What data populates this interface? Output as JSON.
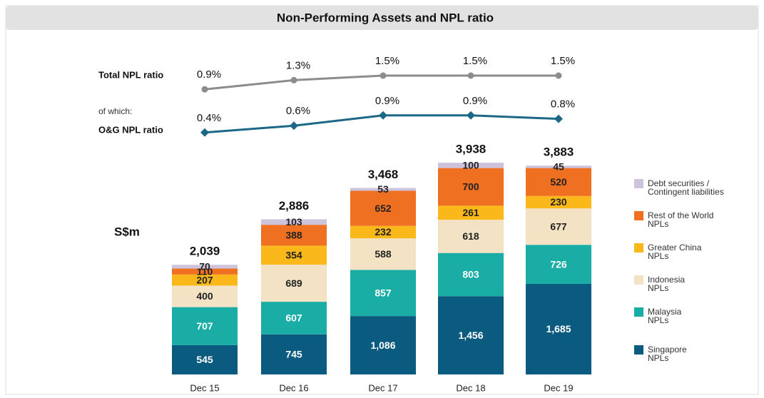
{
  "chart_data": {
    "type": "bar",
    "stacked": true,
    "title": "Non-Performing Assets and NPL ratio",
    "unit_label": "S$m",
    "categories": [
      "Dec 15",
      "Dec 16",
      "Dec 17",
      "Dec 18",
      "Dec 19"
    ],
    "series": [
      {
        "name": "Singapore\nNPLs",
        "color": "#0b5a7f",
        "label_color": "#ffffff",
        "values": [
          545,
          745,
          1086,
          1456,
          1685
        ],
        "value_labels": [
          "545",
          "745",
          "1,086",
          "1,456",
          "1,685"
        ]
      },
      {
        "name": "Malaysia\nNPLs",
        "color": "#1aada6",
        "label_color": "#ffffff",
        "values": [
          707,
          607,
          857,
          803,
          726
        ]
      },
      {
        "name": "Indonesia\nNPLs",
        "color": "#f3e3c4",
        "label_color": "#222222",
        "values": [
          400,
          689,
          588,
          618,
          677
        ]
      },
      {
        "name": "Greater China\nNPLs",
        "color": "#fbb81a",
        "label_color": "#222222",
        "values": [
          207,
          354,
          232,
          261,
          230
        ]
      },
      {
        "name": "Rest of the World\nNPLs",
        "color": "#f07022",
        "label_color": "#222222",
        "values": [
          110,
          388,
          652,
          700,
          520
        ]
      },
      {
        "name": "Debt securities /\nContingent liabilities",
        "color": "#cdc3dc",
        "label_color": "#222222",
        "values": [
          70,
          103,
          53,
          100,
          45
        ]
      }
    ],
    "totals": {
      "values": [
        2039,
        2886,
        3468,
        3938,
        3883
      ],
      "value_labels": [
        "2,039",
        "2,886",
        "3,468",
        "3,938",
        "3,883"
      ]
    },
    "lines": [
      {
        "name": "Total NPL ratio",
        "color": "#8c8c8c",
        "marker": "circle",
        "values": [
          0.9,
          1.3,
          1.5,
          1.5,
          1.5
        ],
        "value_labels": [
          "0.9%",
          "1.3%",
          "1.5%",
          "1.5%",
          "1.5%"
        ]
      },
      {
        "prefix": "of which:",
        "name": "O&G NPL ratio",
        "color": "#1c6886",
        "marker": "diamond",
        "values": [
          0.4,
          0.6,
          0.9,
          0.9,
          0.8
        ],
        "value_labels": [
          "0.4%",
          "0.6%",
          "0.9%",
          "0.9%",
          "0.8%"
        ]
      }
    ]
  }
}
